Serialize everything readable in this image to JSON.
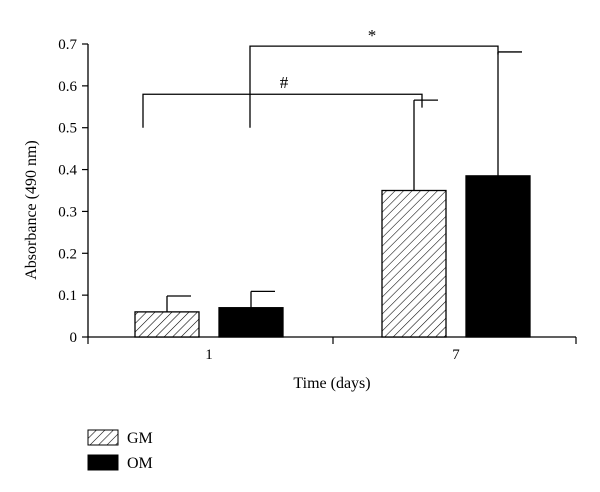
{
  "chart_data": {
    "type": "bar",
    "xlabel": "Time (days)",
    "ylabel": "Absorbance (490 nm)",
    "ylim": [
      0,
      0.7
    ],
    "yticks": [
      "0",
      "0.1",
      "0.2",
      "0.3",
      "0.4",
      "0.5",
      "0.6",
      "0.7"
    ],
    "categories": [
      "1",
      "7"
    ],
    "series": [
      {
        "name": "GM",
        "pattern": "hatched",
        "values": [
          0.06,
          0.35
        ],
        "error": [
          0.038,
          0.216
        ]
      },
      {
        "name": "OM",
        "pattern": "solid",
        "color": "#000000",
        "values": [
          0.07,
          0.385
        ],
        "error": [
          0.039,
          0.296
        ]
      }
    ],
    "annotations": [
      {
        "text": "#",
        "from": "1",
        "to": "7 GM"
      },
      {
        "text": "*",
        "from": "1",
        "to": "7 OM"
      }
    ],
    "legend": {
      "placement": "bottom-left",
      "entries": [
        "GM",
        "OM"
      ]
    },
    "grid": false
  }
}
